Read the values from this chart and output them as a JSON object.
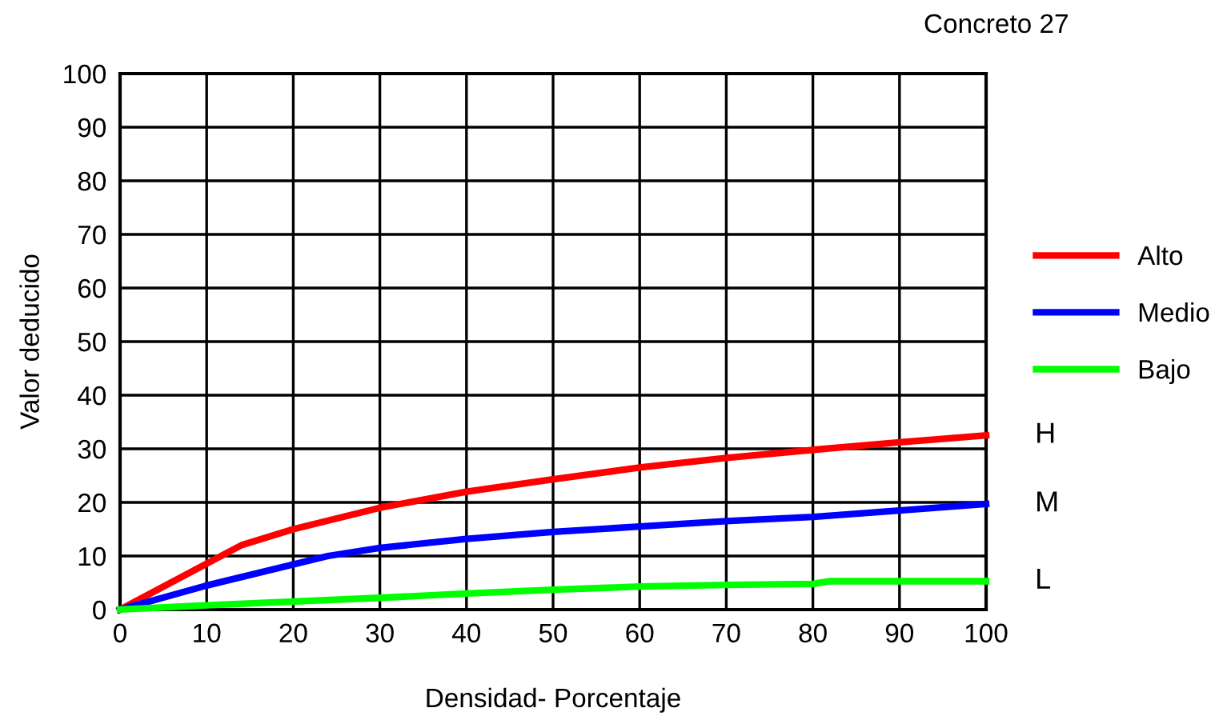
{
  "chart_data": {
    "type": "line",
    "title": "Concreto 27",
    "xlabel": "Densidad- Porcentaje",
    "ylabel": "Valor deducido",
    "xlim": [
      0,
      100
    ],
    "ylim": [
      0,
      100
    ],
    "xticks": [
      0,
      10,
      20,
      30,
      40,
      50,
      60,
      70,
      80,
      90,
      100
    ],
    "yticks": [
      0,
      10,
      20,
      30,
      40,
      50,
      60,
      70,
      80,
      90,
      100
    ],
    "grid": true,
    "legend": "right",
    "marker": "none",
    "line_style": "solid",
    "series": [
      {
        "name": "Alto",
        "color": "#ff0000",
        "x": [
          0,
          14,
          20,
          30,
          40,
          50,
          60,
          70,
          80,
          90,
          100
        ],
        "values": [
          0,
          12,
          15,
          19,
          22,
          24.3,
          26.5,
          28.3,
          29.8,
          31.2,
          32.5
        ]
      },
      {
        "name": "Medio",
        "color": "#0000ff",
        "x": [
          0,
          10,
          24,
          30,
          40,
          50,
          60,
          70,
          80,
          90,
          100
        ],
        "values": [
          0,
          4.5,
          10,
          11.5,
          13.2,
          14.5,
          15.5,
          16.5,
          17.3,
          18.5,
          19.7
        ]
      },
      {
        "name": "Bajo",
        "color": "#00ff00",
        "x": [
          0,
          10,
          20,
          30,
          40,
          50,
          60,
          70,
          80,
          82,
          100
        ],
        "values": [
          0,
          0.8,
          1.5,
          2.2,
          3,
          3.7,
          4.3,
          4.6,
          4.8,
          5.3,
          5.3
        ]
      }
    ],
    "annotations": [
      "H",
      "M",
      "L"
    ]
  }
}
